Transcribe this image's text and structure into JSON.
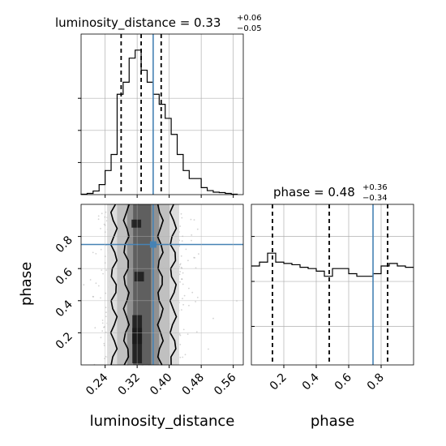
{
  "chart_data": {
    "type": "corner",
    "parameters": [
      "luminosity_distance",
      "phase"
    ],
    "truth": {
      "luminosity_distance": 0.36,
      "phase": 0.75
    },
    "colors": {
      "truth": "#4682b4",
      "hist": "#000000",
      "grid": "#b0b0b0",
      "scatter": "#9e9e9e"
    },
    "grid": true,
    "luminosity_distance": {
      "title_prefix": "luminosity_distance = ",
      "median": "0.33",
      "err_plus": "+0.06",
      "err_minus": "−0.05",
      "quantiles": [
        0.28,
        0.33,
        0.38
      ],
      "axis_label": "luminosity_distance",
      "ticks": [
        0.24,
        0.32,
        0.4,
        0.48,
        0.56
      ],
      "tick_labels": [
        "0.24",
        "0.32",
        "0.40",
        "0.48",
        "0.56"
      ],
      "range": [
        0.18,
        0.585
      ],
      "hist_x": [
        0.18,
        0.195,
        0.21,
        0.225,
        0.24,
        0.255,
        0.27,
        0.285,
        0.3,
        0.315,
        0.33,
        0.345,
        0.36,
        0.375,
        0.39,
        0.405,
        0.42,
        0.435,
        0.45,
        0.465,
        0.48,
        0.495,
        0.51,
        0.525,
        0.54,
        0.555
      ],
      "hist_y": [
        0.002,
        0.006,
        0.018,
        0.05,
        0.12,
        0.2,
        0.5,
        0.56,
        0.68,
        0.72,
        0.62,
        0.56,
        0.5,
        0.45,
        0.38,
        0.3,
        0.2,
        0.12,
        0.08,
        0.08,
        0.035,
        0.02,
        0.012,
        0.01,
        0.006,
        0.002
      ],
      "hist_ymax": 0.8
    },
    "phase": {
      "title_prefix": "phase = ",
      "median": "0.48",
      "err_plus": "+0.36",
      "err_minus": "−0.34",
      "quantiles": [
        0.13,
        0.48,
        0.84
      ],
      "axis_label": "phase",
      "ticks": [
        0.2,
        0.4,
        0.6,
        0.8
      ],
      "tick_labels": [
        "0.2",
        "0.4",
        "0.6",
        "0.8"
      ],
      "range": [
        0.0,
        1.0
      ],
      "hist_x": [
        0.0,
        0.05,
        0.1,
        0.15,
        0.2,
        0.25,
        0.3,
        0.35,
        0.4,
        0.45,
        0.5,
        0.55,
        0.6,
        0.65,
        0.7,
        0.75,
        0.8,
        0.85,
        0.9,
        0.95
      ],
      "hist_y": [
        0.77,
        0.8,
        0.87,
        0.8,
        0.79,
        0.78,
        0.76,
        0.75,
        0.73,
        0.69,
        0.75,
        0.75,
        0.71,
        0.69,
        0.69,
        0.71,
        0.77,
        0.79,
        0.77,
        0.76
      ],
      "hist_ymax": 1.25
    }
  }
}
